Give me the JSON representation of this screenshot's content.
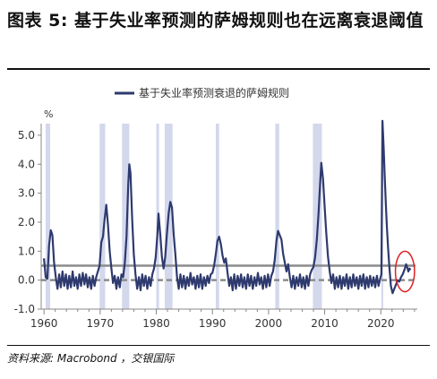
{
  "header": {
    "title": "图表 5: 基于失业率预测的萨姆规则也在远离衰退阈值"
  },
  "footer": {
    "source": "资料来源: Macrobond ，交银国际"
  },
  "colors": {
    "series": "#2e3a6e",
    "shade": "#d4d8ec",
    "threshold": "#8c8c8c",
    "annotation": "#e02020"
  },
  "chart_data": {
    "type": "line",
    "title": "",
    "xlabel": "",
    "ylabel": "%",
    "xlim": [
      1959.5,
      2026.5
    ],
    "ylim": [
      -1.0,
      5.4
    ],
    "x_ticks": [
      "1960",
      "1970",
      "1980",
      "1990",
      "2000",
      "2010",
      "2020"
    ],
    "y_ticks": [
      "5.0",
      "4.0",
      "3.0",
      "2.0",
      "1.0",
      "0.0",
      "-1.0"
    ],
    "legend": {
      "position": "top-center",
      "entries": [
        "基于失业率预测衰退的萨姆规则"
      ]
    },
    "reference_lines": [
      {
        "y": 0.5,
        "style": "solid"
      },
      {
        "y": 0.0,
        "style": "dashed"
      }
    ],
    "recession_shading": [
      [
        1960.3,
        1961.1
      ],
      [
        1969.9,
        1970.9
      ],
      [
        1973.9,
        1975.2
      ],
      [
        1980.0,
        1980.5
      ],
      [
        1981.5,
        1982.9
      ],
      [
        1990.6,
        1991.2
      ],
      [
        2001.2,
        2001.9
      ],
      [
        2007.9,
        2009.5
      ],
      [
        2020.1,
        2020.4
      ]
    ],
    "series": [
      {
        "name": "基于失业率预测衰退的萨姆规则",
        "points": [
          [
            1960.0,
            0.75
          ],
          [
            1960.3,
            0.1
          ],
          [
            1960.6,
            0.05
          ],
          [
            1960.9,
            1.2
          ],
          [
            1961.2,
            1.72
          ],
          [
            1961.5,
            1.55
          ],
          [
            1961.8,
            0.6
          ],
          [
            1962.1,
            0.1
          ],
          [
            1962.4,
            -0.3
          ],
          [
            1962.7,
            0.2
          ],
          [
            1963.0,
            -0.25
          ],
          [
            1963.3,
            0.3
          ],
          [
            1963.6,
            -0.2
          ],
          [
            1963.9,
            0.2
          ],
          [
            1964.2,
            -0.3
          ],
          [
            1964.5,
            0.15
          ],
          [
            1964.8,
            -0.25
          ],
          [
            1965.1,
            0.3
          ],
          [
            1965.4,
            -0.2
          ],
          [
            1965.7,
            0.1
          ],
          [
            1966.0,
            -0.3
          ],
          [
            1966.3,
            0.2
          ],
          [
            1966.6,
            -0.2
          ],
          [
            1966.9,
            0.25
          ],
          [
            1967.2,
            -0.15
          ],
          [
            1967.5,
            0.2
          ],
          [
            1967.8,
            -0.25
          ],
          [
            1968.1,
            0.1
          ],
          [
            1968.4,
            -0.3
          ],
          [
            1968.7,
            0.15
          ],
          [
            1969.0,
            -0.2
          ],
          [
            1969.3,
            0.1
          ],
          [
            1969.6,
            0.3
          ],
          [
            1969.9,
            0.5
          ],
          [
            1970.2,
            1.3
          ],
          [
            1970.5,
            1.5
          ],
          [
            1970.8,
            2.1
          ],
          [
            1971.1,
            2.6
          ],
          [
            1971.4,
            1.9
          ],
          [
            1971.7,
            1.0
          ],
          [
            1972.0,
            0.4
          ],
          [
            1972.3,
            -0.1
          ],
          [
            1972.6,
            0.15
          ],
          [
            1972.9,
            -0.3
          ],
          [
            1973.2,
            0.1
          ],
          [
            1973.5,
            -0.25
          ],
          [
            1973.8,
            0.2
          ],
          [
            1974.1,
            0.1
          ],
          [
            1974.4,
            0.6
          ],
          [
            1974.7,
            1.5
          ],
          [
            1975.0,
            3.3
          ],
          [
            1975.2,
            4.0
          ],
          [
            1975.4,
            3.7
          ],
          [
            1975.7,
            2.1
          ],
          [
            1976.0,
            0.9
          ],
          [
            1976.3,
            0.2
          ],
          [
            1976.6,
            -0.3
          ],
          [
            1976.9,
            0.1
          ],
          [
            1977.2,
            -0.35
          ],
          [
            1977.5,
            0.2
          ],
          [
            1977.8,
            -0.2
          ],
          [
            1978.1,
            0.15
          ],
          [
            1978.4,
            -0.3
          ],
          [
            1978.7,
            0.1
          ],
          [
            1979.0,
            -0.2
          ],
          [
            1979.3,
            0.2
          ],
          [
            1979.6,
            0.4
          ],
          [
            1979.9,
            0.8
          ],
          [
            1980.2,
            1.6
          ],
          [
            1980.4,
            2.3
          ],
          [
            1980.7,
            1.6
          ],
          [
            1981.0,
            0.8
          ],
          [
            1981.3,
            0.4
          ],
          [
            1981.6,
            0.8
          ],
          [
            1981.9,
            1.6
          ],
          [
            1982.2,
            2.3
          ],
          [
            1982.5,
            2.7
          ],
          [
            1982.8,
            2.5
          ],
          [
            1983.1,
            1.6
          ],
          [
            1983.4,
            0.9
          ],
          [
            1983.7,
            0.1
          ],
          [
            1984.0,
            -0.3
          ],
          [
            1984.3,
            0.2
          ],
          [
            1984.6,
            -0.25
          ],
          [
            1984.9,
            0.15
          ],
          [
            1985.2,
            -0.3
          ],
          [
            1985.5,
            0.1
          ],
          [
            1985.8,
            -0.2
          ],
          [
            1986.1,
            0.25
          ],
          [
            1986.4,
            -0.15
          ],
          [
            1986.7,
            0.1
          ],
          [
            1987.0,
            -0.3
          ],
          [
            1987.3,
            0.15
          ],
          [
            1987.6,
            -0.25
          ],
          [
            1987.9,
            0.2
          ],
          [
            1988.2,
            -0.3
          ],
          [
            1988.5,
            0.1
          ],
          [
            1988.8,
            -0.2
          ],
          [
            1989.1,
            0.15
          ],
          [
            1989.4,
            -0.1
          ],
          [
            1989.7,
            0.2
          ],
          [
            1990.0,
            0.25
          ],
          [
            1990.3,
            0.5
          ],
          [
            1990.6,
            0.9
          ],
          [
            1990.9,
            1.35
          ],
          [
            1991.2,
            1.5
          ],
          [
            1991.5,
            1.25
          ],
          [
            1991.8,
            0.85
          ],
          [
            1992.1,
            0.6
          ],
          [
            1992.4,
            0.75
          ],
          [
            1992.7,
            0.25
          ],
          [
            1993.0,
            -0.2
          ],
          [
            1993.3,
            0.1
          ],
          [
            1993.6,
            -0.35
          ],
          [
            1993.9,
            0.2
          ],
          [
            1994.2,
            -0.3
          ],
          [
            1994.5,
            0.15
          ],
          [
            1994.8,
            -0.2
          ],
          [
            1995.1,
            0.2
          ],
          [
            1995.4,
            -0.25
          ],
          [
            1995.7,
            0.1
          ],
          [
            1996.0,
            -0.3
          ],
          [
            1996.3,
            0.2
          ],
          [
            1996.6,
            -0.2
          ],
          [
            1996.9,
            0.15
          ],
          [
            1997.2,
            -0.3
          ],
          [
            1997.5,
            0.1
          ],
          [
            1997.8,
            -0.2
          ],
          [
            1998.1,
            0.25
          ],
          [
            1998.4,
            -0.15
          ],
          [
            1998.7,
            0.1
          ],
          [
            1999.0,
            -0.3
          ],
          [
            1999.3,
            0.15
          ],
          [
            1999.6,
            -0.25
          ],
          [
            1999.9,
            0.2
          ],
          [
            2000.2,
            -0.2
          ],
          [
            2000.5,
            0.15
          ],
          [
            2000.8,
            0.3
          ],
          [
            2001.1,
            0.7
          ],
          [
            2001.4,
            1.35
          ],
          [
            2001.7,
            1.7
          ],
          [
            2002.0,
            1.55
          ],
          [
            2002.3,
            1.4
          ],
          [
            2002.6,
            0.9
          ],
          [
            2002.9,
            0.6
          ],
          [
            2003.2,
            0.3
          ],
          [
            2003.5,
            0.55
          ],
          [
            2003.8,
            0.1
          ],
          [
            2004.1,
            -0.25
          ],
          [
            2004.4,
            0.15
          ],
          [
            2004.7,
            -0.3
          ],
          [
            2005.0,
            0.1
          ],
          [
            2005.3,
            -0.2
          ],
          [
            2005.6,
            0.2
          ],
          [
            2005.9,
            -0.25
          ],
          [
            2006.2,
            0.1
          ],
          [
            2006.5,
            -0.3
          ],
          [
            2006.8,
            0.15
          ],
          [
            2007.1,
            -0.2
          ],
          [
            2007.4,
            0.2
          ],
          [
            2007.7,
            0.35
          ],
          [
            2008.0,
            0.45
          ],
          [
            2008.3,
            0.8
          ],
          [
            2008.6,
            1.4
          ],
          [
            2008.9,
            2.3
          ],
          [
            2009.2,
            3.4
          ],
          [
            2009.4,
            4.05
          ],
          [
            2009.7,
            3.5
          ],
          [
            2010.0,
            2.5
          ],
          [
            2010.3,
            1.6
          ],
          [
            2010.6,
            0.8
          ],
          [
            2010.9,
            0.3
          ],
          [
            2011.2,
            -0.1
          ],
          [
            2011.5,
            0.2
          ],
          [
            2011.8,
            -0.3
          ],
          [
            2012.1,
            0.1
          ],
          [
            2012.4,
            -0.25
          ],
          [
            2012.7,
            0.15
          ],
          [
            2013.0,
            -0.3
          ],
          [
            2013.3,
            0.1
          ],
          [
            2013.6,
            -0.2
          ],
          [
            2013.9,
            0.2
          ],
          [
            2014.2,
            -0.3
          ],
          [
            2014.5,
            0.1
          ],
          [
            2014.8,
            -0.25
          ],
          [
            2015.1,
            0.2
          ],
          [
            2015.4,
            -0.2
          ],
          [
            2015.7,
            0.1
          ],
          [
            2016.0,
            -0.3
          ],
          [
            2016.3,
            0.15
          ],
          [
            2016.6,
            -0.2
          ],
          [
            2016.9,
            0.2
          ],
          [
            2017.2,
            -0.3
          ],
          [
            2017.5,
            0.1
          ],
          [
            2017.8,
            -0.25
          ],
          [
            2018.1,
            0.15
          ],
          [
            2018.4,
            -0.2
          ],
          [
            2018.7,
            0.1
          ],
          [
            2019.0,
            -0.25
          ],
          [
            2019.3,
            0.15
          ],
          [
            2019.6,
            -0.2
          ],
          [
            2019.9,
            0.05
          ],
          [
            2020.1,
            0.2
          ],
          [
            2020.3,
            5.5
          ],
          [
            2020.5,
            4.6
          ],
          [
            2020.7,
            3.6
          ],
          [
            2020.9,
            2.6
          ],
          [
            2021.1,
            1.8
          ],
          [
            2021.3,
            1.1
          ],
          [
            2021.5,
            0.5
          ],
          [
            2021.8,
            -0.2
          ],
          [
            2022.1,
            -0.45
          ],
          [
            2022.4,
            -0.3
          ],
          [
            2022.7,
            -0.15
          ],
          [
            2023.0,
            0.0
          ],
          [
            2023.3,
            -0.05
          ],
          [
            2023.6,
            0.1
          ],
          [
            2023.9,
            0.2
          ],
          [
            2024.2,
            0.35
          ],
          [
            2024.5,
            0.55
          ],
          [
            2024.7,
            0.45
          ],
          [
            2024.9,
            0.3
          ],
          [
            2025.1,
            0.4
          ],
          [
            2025.3,
            0.35
          ]
        ]
      }
    ],
    "annotations": [
      {
        "type": "ellipse",
        "center": [
          2024.3,
          0.3
        ],
        "radius_years": 1.7,
        "radius_value": 0.7
      }
    ]
  }
}
